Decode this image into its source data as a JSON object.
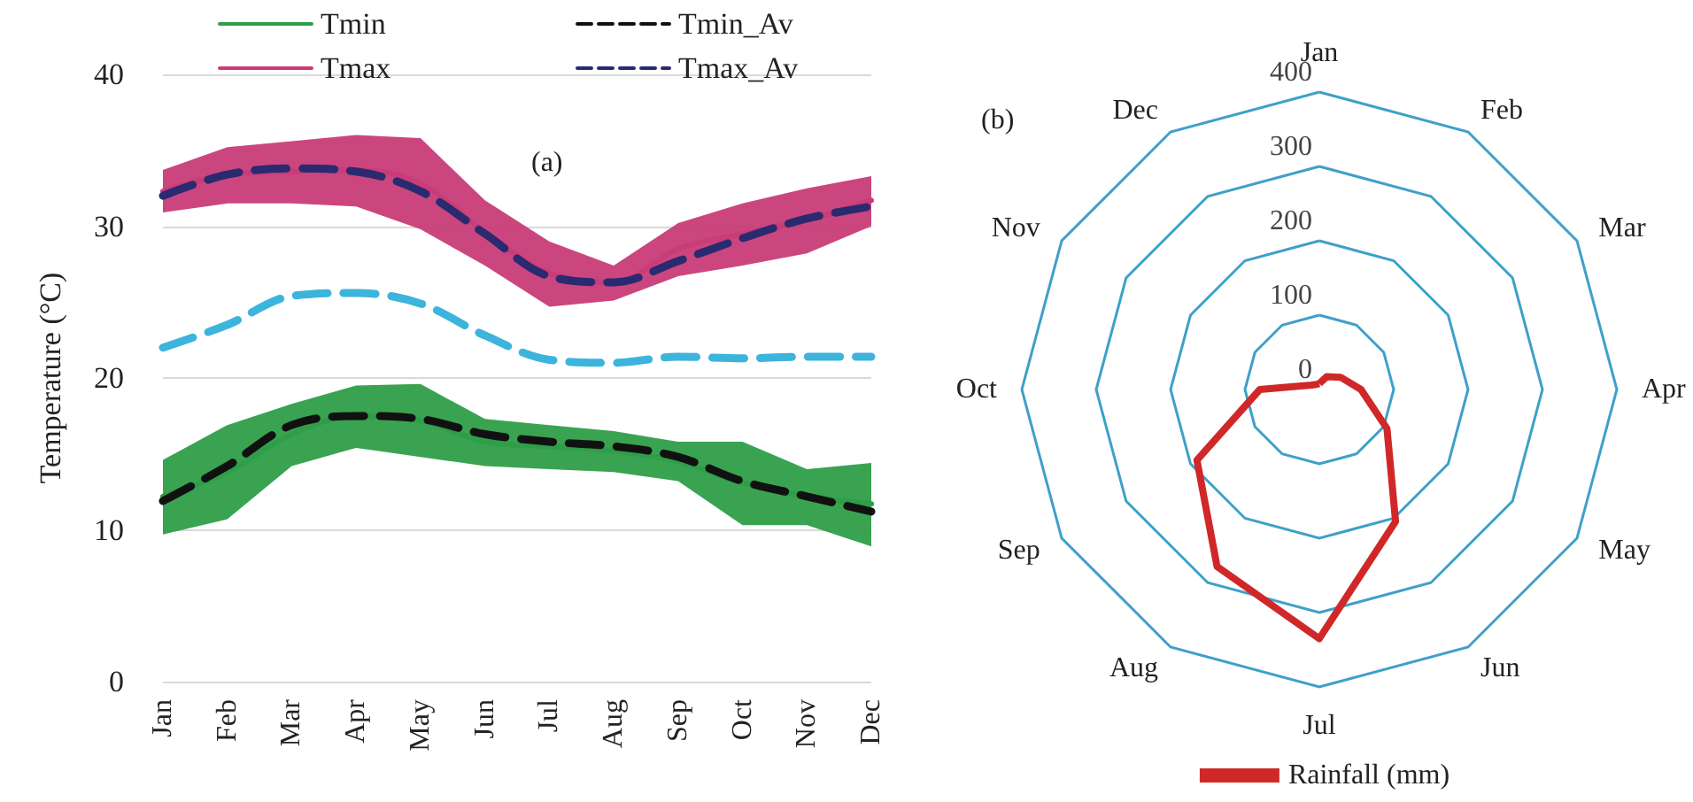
{
  "chart_data": [
    {
      "type": "line",
      "ylabel": "Temperature (°C)",
      "categories": [
        "Jan",
        "Feb",
        "Mar",
        "Apr",
        "May",
        "Jun",
        "Jul",
        "Aug",
        "Sep",
        "Oct",
        "Nov",
        "Dec"
      ],
      "ylim": [
        0,
        40
      ],
      "yticks": [
        0,
        10,
        20,
        30,
        40
      ],
      "grid": "y",
      "legend": "top",
      "marker": "none",
      "annotations": [
        "(a)"
      ],
      "series": [
        {
          "name": "Tmin",
          "color": "#2e9e48",
          "line_style": "solid",
          "values": [
            12.2,
            13.8,
            16.3,
            17.5,
            17.2,
            15.8,
            15.5,
            15.2,
            14.5,
            13.1,
            12.2,
            11.7
          ],
          "lower": [
            9.7,
            10.7,
            14.2,
            15.4,
            14.8,
            14.2,
            14.0,
            13.8,
            13.2,
            10.3,
            10.3,
            8.9
          ],
          "upper": [
            14.6,
            16.9,
            18.3,
            19.5,
            19.6,
            17.3,
            16.9,
            16.5,
            15.8,
            15.8,
            14.0,
            14.4
          ]
        },
        {
          "name": "Tmin_Av",
          "color": "#111111",
          "line_style": "dashed",
          "values": [
            11.9,
            14.2,
            16.9,
            17.5,
            17.3,
            16.3,
            15.8,
            15.5,
            14.8,
            13.2,
            12.2,
            11.2
          ]
        },
        {
          "name": "Tmax",
          "color": "#c83c78",
          "line_style": "solid",
          "values": [
            32.3,
            33.4,
            33.6,
            33.7,
            32.8,
            29.6,
            26.9,
            26.3,
            28.5,
            29.5,
            30.4,
            31.7
          ],
          "lower": [
            30.9,
            31.5,
            31.5,
            31.3,
            29.8,
            27.4,
            24.7,
            25.1,
            26.7,
            27.4,
            28.2,
            30.0
          ],
          "upper": [
            33.7,
            35.2,
            35.6,
            36.0,
            35.8,
            31.7,
            29.0,
            27.4,
            30.2,
            31.5,
            32.5,
            33.3
          ]
        },
        {
          "name": "Tmax_Av",
          "color": "#2a2a70",
          "line_style": "dashed",
          "values": [
            32.0,
            33.4,
            33.8,
            33.6,
            32.3,
            29.5,
            26.7,
            26.3,
            27.7,
            29.2,
            30.5,
            31.3
          ]
        },
        {
          "color": "#3cb4dc",
          "line_style": "dashed",
          "values": [
            22.0,
            23.5,
            25.4,
            25.6,
            24.9,
            22.8,
            21.2,
            21.0,
            21.4,
            21.3,
            21.4,
            21.4
          ]
        }
      ]
    },
    {
      "type": "radar",
      "categories": [
        "Jan",
        "Feb",
        "Mar",
        "Apr",
        "May",
        "Jun",
        "Jul",
        "Aug",
        "Sep",
        "Oct",
        "Nov",
        "Dec"
      ],
      "ylim": [
        0,
        400
      ],
      "yticks": [
        0,
        100,
        200,
        300,
        400
      ],
      "legend": "bottom",
      "annotations": [
        "(b)"
      ],
      "series": [
        {
          "name": "Rainfall (mm)",
          "color": "#d02828",
          "values": [
            8,
            20,
            33,
            56,
            105,
            205,
            335,
            275,
            190,
            80,
            12,
            8
          ]
        }
      ]
    }
  ]
}
